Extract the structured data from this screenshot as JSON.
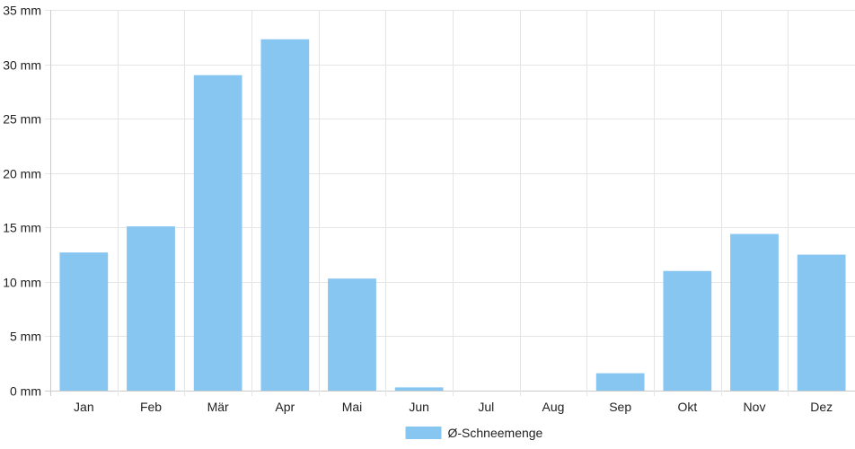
{
  "chart_data": {
    "type": "bar",
    "categories": [
      "Jan",
      "Feb",
      "Mär",
      "Apr",
      "Mai",
      "Jun",
      "Jul",
      "Aug",
      "Sep",
      "Okt",
      "Nov",
      "Dez"
    ],
    "series": [
      {
        "name": "Ø-Schneemenge",
        "values": [
          12.7,
          15.1,
          29.0,
          32.3,
          10.3,
          0.3,
          0,
          0,
          1.6,
          11.0,
          14.4,
          12.5
        ],
        "color": "#88c6f2"
      }
    ],
    "ylim": [
      0,
      35
    ],
    "yticks": [
      0,
      5,
      10,
      15,
      20,
      25,
      30,
      35
    ],
    "yunit": "mm",
    "grid": true,
    "legend": "bottom-center",
    "grid_color": "#e5e5e5",
    "axis_color": "#cccccc"
  }
}
